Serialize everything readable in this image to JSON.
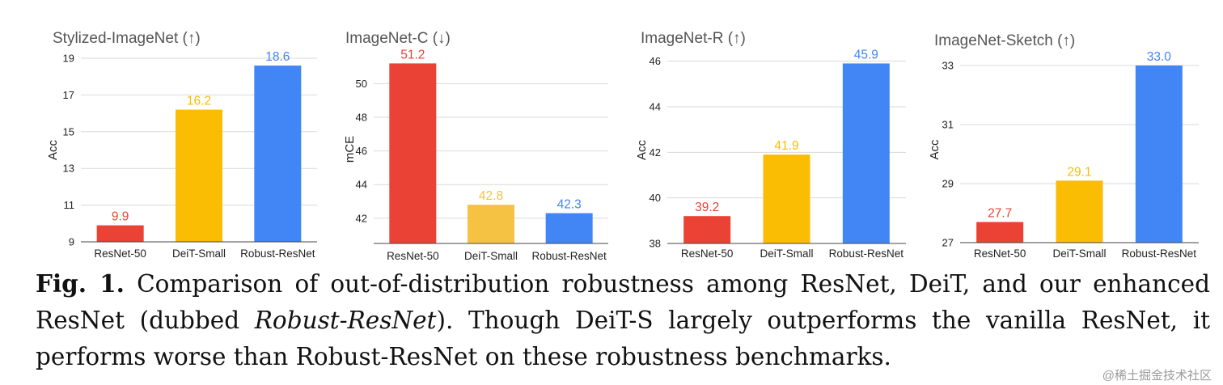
{
  "colors": {
    "resnet": "#EA4335",
    "deit": "#FBBC04",
    "deit_light": "#F6C244",
    "robust": "#4285F4"
  },
  "chart_data": [
    {
      "type": "bar",
      "title": "Stylized-ImageNet  (↑)",
      "ylabel": "Acc",
      "categories": [
        "ResNet-50",
        "DeiT-Small",
        "Robust-ResNet"
      ],
      "values": [
        9.9,
        16.2,
        18.6
      ],
      "value_labels": [
        "9.9",
        "16.2",
        "18.6"
      ],
      "ylim": [
        9,
        19
      ],
      "yticks": [
        9,
        11,
        13,
        15,
        17,
        19
      ],
      "bar_colors": [
        "#EA4335",
        "#FBBC04",
        "#4285F4"
      ],
      "grid": true
    },
    {
      "type": "bar",
      "title": "ImageNet-C (↓)",
      "ylabel": "mCE",
      "categories": [
        "ResNet-50",
        "DeiT-Small",
        "Robust-ResNet"
      ],
      "values": [
        51.2,
        42.8,
        42.3
      ],
      "value_labels": [
        "51.2",
        "42.8",
        "42.3"
      ],
      "ylim": [
        40.5,
        51.7
      ],
      "yticks": [
        42,
        44,
        46,
        48,
        50
      ],
      "bar_colors": [
        "#EA4335",
        "#F6C244",
        "#4285F4"
      ],
      "grid": true
    },
    {
      "type": "bar",
      "title": "ImageNet-R (↑)",
      "ylabel": "Acc",
      "categories": [
        "ResNet-50",
        "DeiT-Small",
        "Robust-ResNet"
      ],
      "values": [
        39.2,
        41.9,
        45.9
      ],
      "value_labels": [
        "39.2",
        "41.9",
        "45.9"
      ],
      "ylim": [
        38,
        46.2
      ],
      "yticks": [
        38,
        40,
        42,
        44,
        46
      ],
      "bar_colors": [
        "#EA4335",
        "#FBBC04",
        "#4285F4"
      ],
      "grid": true
    },
    {
      "type": "bar",
      "title": "ImageNet-Sketch (↑)",
      "ylabel": "Acc",
      "categories": [
        "ResNet-50",
        "DeiT-Small",
        "Robust-ResNet"
      ],
      "values": [
        27.7,
        29.1,
        33.0
      ],
      "value_labels": [
        "27.7",
        "29.1",
        "33.0"
      ],
      "ylim": [
        27,
        33.3
      ],
      "yticks": [
        27,
        29,
        31,
        33
      ],
      "bar_colors": [
        "#EA4335",
        "#FBBC04",
        "#4285F4"
      ],
      "grid": true
    }
  ],
  "caption": {
    "label": "Fig. 1.",
    "text_before": " Comparison of out-of-distribution robustness among ResNet, DeiT, and our enhanced ResNet (dubbed ",
    "emphasis": "Robust-ResNet",
    "text_after": "). Though DeiT-S largely outperforms the vanilla ResNet, it performs worse than Robust-ResNet on these robustness benchmarks."
  },
  "watermark": "@稀土掘金技术社区"
}
